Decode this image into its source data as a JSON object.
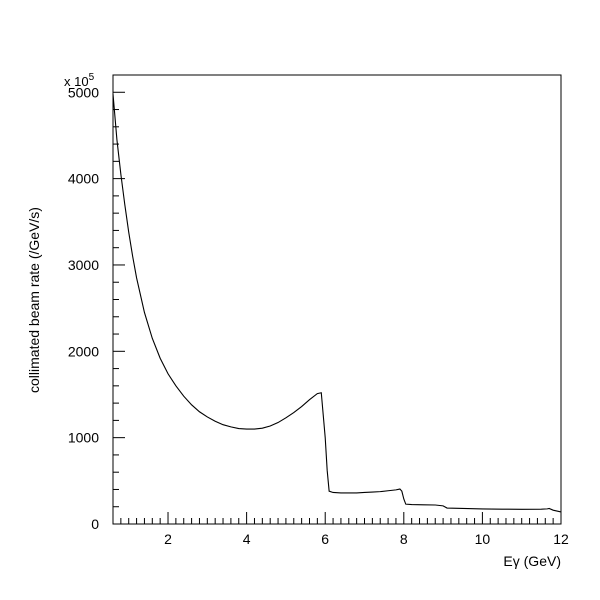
{
  "chart_data": {
    "type": "line",
    "title": "",
    "xlabel": "Eγ (GeV)",
    "ylabel": "collimated beam rate (/GeV/s)",
    "y_multiplier_base": "x 10",
    "y_multiplier_exponent": "5",
    "xlim": [
      0.6,
      12
    ],
    "ylim": [
      0,
      5200
    ],
    "grid": false,
    "legend": "none",
    "x_major_ticks": [
      2,
      4,
      6,
      8,
      10,
      12
    ],
    "x_tick_labels": [
      "2",
      "4",
      "6",
      "8",
      "10",
      "12"
    ],
    "y_major_ticks": [
      0,
      1000,
      2000,
      3000,
      4000,
      5000
    ],
    "y_tick_labels": [
      "0",
      "1000",
      "2000",
      "3000",
      "4000",
      "5000"
    ],
    "line_color": "#000000",
    "series": [
      {
        "x": [
          0.6,
          0.7,
          0.8,
          0.9,
          1.0,
          1.1,
          1.2,
          1.4,
          1.6,
          1.8,
          2.0,
          2.2,
          2.4,
          2.6,
          2.8,
          3.0,
          3.2,
          3.4,
          3.6,
          3.8,
          4.0,
          4.2,
          4.4,
          4.6,
          4.8,
          5.0,
          5.2,
          5.4,
          5.6,
          5.8,
          5.9,
          6.0,
          6.05,
          6.1,
          6.2,
          6.4,
          6.6,
          6.8,
          7.0,
          7.2,
          7.4,
          7.6,
          7.8,
          7.9,
          7.95,
          8.0,
          8.05,
          8.2,
          8.5,
          8.8,
          9.0,
          9.1,
          9.5,
          10.0,
          10.5,
          11.0,
          11.5,
          11.65,
          11.7,
          11.8,
          11.9,
          12.0
        ],
        "y": [
          4980,
          4450,
          4050,
          3700,
          3380,
          3100,
          2850,
          2450,
          2150,
          1920,
          1740,
          1600,
          1480,
          1380,
          1300,
          1240,
          1190,
          1150,
          1125,
          1105,
          1100,
          1100,
          1110,
          1135,
          1175,
          1230,
          1290,
          1360,
          1440,
          1510,
          1520,
          1000,
          620,
          380,
          365,
          360,
          360,
          360,
          365,
          370,
          375,
          385,
          395,
          405,
          380,
          290,
          230,
          225,
          222,
          220,
          210,
          185,
          180,
          175,
          172,
          170,
          172,
          175,
          180,
          160,
          150,
          140
        ]
      }
    ]
  }
}
